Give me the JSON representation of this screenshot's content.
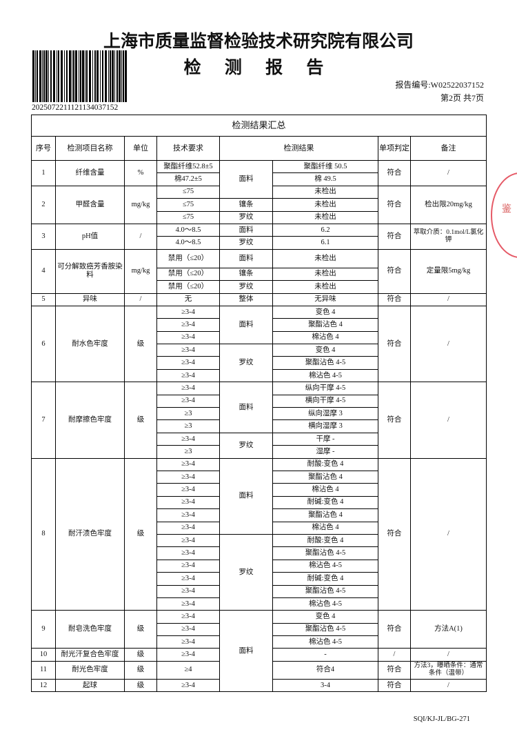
{
  "header": {
    "organization": "上海市质量监督检验技术研究院有限公司",
    "title": "检 测 报 告",
    "barcode_number": "2025072211121134037152",
    "report_no": "报告编号:W02522037152",
    "page_info": "第2页 共7页"
  },
  "table": {
    "caption": "检测结果汇总",
    "columns": [
      "序号",
      "检测项目名称",
      "单位",
      "技术要求",
      "检测结果",
      "单项判定",
      "备注"
    ],
    "items": [
      {
        "no": "1",
        "name": "纤维含量",
        "unit": "%",
        "verdict": "符合",
        "note": "/",
        "sub": [
          {
            "req": "聚酯纤维52.8±5",
            "part": "面料",
            "result": "聚酯纤维 50.5"
          },
          {
            "req": "棉47.2±5",
            "part": "面料",
            "result": "棉 49.5"
          }
        ]
      },
      {
        "no": "2",
        "name": "甲醛含量",
        "unit": "mg/kg",
        "verdict": "符合",
        "note": "检出限20mg/kg",
        "sub": [
          {
            "req": "≤75",
            "part": "面料",
            "result": "未检出"
          },
          {
            "req": "≤75",
            "part": "镶条",
            "result": "未检出"
          },
          {
            "req": "≤75",
            "part": "罗纹",
            "result": "未检出"
          }
        ]
      },
      {
        "no": "3",
        "name": "pH值",
        "unit": "/",
        "verdict": "符合",
        "note": "萃取介质：0.1mol/L氯化钾",
        "sub": [
          {
            "req": "4.0～8.5",
            "part": "面料",
            "result": "6.2"
          },
          {
            "req": "4.0～8.5",
            "part": "罗纹",
            "result": "6.1"
          }
        ]
      },
      {
        "no": "4",
        "name": "可分解致癌芳香胺染料",
        "unit": "mg/kg",
        "verdict": "符合",
        "note": "定量限5mg/kg",
        "sub": [
          {
            "req": "禁用（≤20）",
            "part": "面料",
            "result": "未检出"
          },
          {
            "req": "禁用（≤20）",
            "part": "镶条",
            "result": "未检出"
          },
          {
            "req": "禁用（≤20）",
            "part": "罗纹",
            "result": "未检出"
          }
        ]
      },
      {
        "no": "5",
        "name": "异味",
        "unit": "/",
        "verdict": "符合",
        "note": "/",
        "sub": [
          {
            "req": "无",
            "part": "整体",
            "result": "无异味"
          }
        ]
      },
      {
        "no": "6",
        "name": "耐水色牢度",
        "unit": "级",
        "verdict": "符合",
        "note": "/",
        "sub": [
          {
            "req": "≥3-4",
            "part": "面料",
            "result": "变色 4"
          },
          {
            "req": "≥3-4",
            "part": "面料",
            "result": "聚酯沾色 4"
          },
          {
            "req": "≥3-4",
            "part": "面料",
            "result": "棉沾色 4"
          },
          {
            "req": "≥3-4",
            "part": "罗纹",
            "result": "变色 4"
          },
          {
            "req": "≥3-4",
            "part": "罗纹",
            "result": "聚酯沾色 4-5"
          },
          {
            "req": "≥3-4",
            "part": "罗纹",
            "result": "棉沾色 4-5"
          }
        ]
      },
      {
        "no": "7",
        "name": "耐摩擦色牢度",
        "unit": "级",
        "verdict": "符合",
        "note": "/",
        "sub": [
          {
            "req": "≥3-4",
            "part": "面料",
            "result": "纵向干摩 4-5"
          },
          {
            "req": "≥3-4",
            "part": "面料",
            "result": "横向干摩 4-5"
          },
          {
            "req": "≥3",
            "part": "面料",
            "result": "纵向湿摩 3"
          },
          {
            "req": "≥3",
            "part": "面料",
            "result": "横向湿摩 3"
          },
          {
            "req": "≥3-4",
            "part": "罗纹",
            "result": "干摩 -"
          },
          {
            "req": "≥3",
            "part": "罗纹",
            "result": "湿摩 -"
          }
        ]
      },
      {
        "no": "8",
        "name": "耐汗渍色牢度",
        "unit": "级",
        "verdict": "符合",
        "note": "/",
        "sub": [
          {
            "req": "≥3-4",
            "part": "面料",
            "result": "耐酸:变色 4"
          },
          {
            "req": "≥3-4",
            "part": "面料",
            "result": "聚酯沾色 4"
          },
          {
            "req": "≥3-4",
            "part": "面料",
            "result": "棉沾色 4"
          },
          {
            "req": "≥3-4",
            "part": "面料",
            "result": "耐碱:变色 4"
          },
          {
            "req": "≥3-4",
            "part": "面料",
            "result": "聚酯沾色 4"
          },
          {
            "req": "≥3-4",
            "part": "面料",
            "result": "棉沾色 4"
          },
          {
            "req": "≥3-4",
            "part": "罗纹",
            "result": "耐酸:变色 4"
          },
          {
            "req": "≥3-4",
            "part": "罗纹",
            "result": "聚酯沾色 4-5"
          },
          {
            "req": "≥3-4",
            "part": "罗纹",
            "result": "棉沾色 4-5"
          },
          {
            "req": "≥3-4",
            "part": "罗纹",
            "result": "耐碱:变色 4"
          },
          {
            "req": "≥3-4",
            "part": "罗纹",
            "result": "聚酯沾色 4-5"
          },
          {
            "req": "≥3-4",
            "part": "罗纹",
            "result": "棉沾色 4-5"
          }
        ]
      },
      {
        "no": "9",
        "name": "耐皂洗色牢度",
        "unit": "级",
        "verdict": "符合",
        "note": "方法A(1)",
        "sub": [
          {
            "req": "≥3-4",
            "part": "面料",
            "result": "变色 4"
          },
          {
            "req": "≥3-4",
            "part": "面料",
            "result": "聚酯沾色 4-5"
          },
          {
            "req": "≥3-4",
            "part": "面料",
            "result": "棉沾色 4-5"
          }
        ]
      },
      {
        "no": "10",
        "name": "耐光汗复合色牢度",
        "unit": "级",
        "verdict": "/",
        "note": "/",
        "sub": [
          {
            "req": "≥3-4",
            "part": "面料",
            "result": "-"
          }
        ]
      },
      {
        "no": "11",
        "name": "耐光色牢度",
        "unit": "级",
        "verdict": "符合",
        "note": "方法3，曝晒条件：通常条件（温带）",
        "sub": [
          {
            "req": "≥4",
            "part": "面料",
            "result": "符合4"
          }
        ]
      },
      {
        "no": "12",
        "name": "起球",
        "unit": "级",
        "verdict": "符合",
        "note": "/",
        "sub": [
          {
            "req": "≥3-4",
            "part": "面料",
            "result": "3-4"
          }
        ]
      }
    ]
  },
  "footer": {
    "form_code": "SQI/KJ-JL/BG-271"
  },
  "colors": {
    "text": "#111111",
    "stamp": "#d22233"
  }
}
